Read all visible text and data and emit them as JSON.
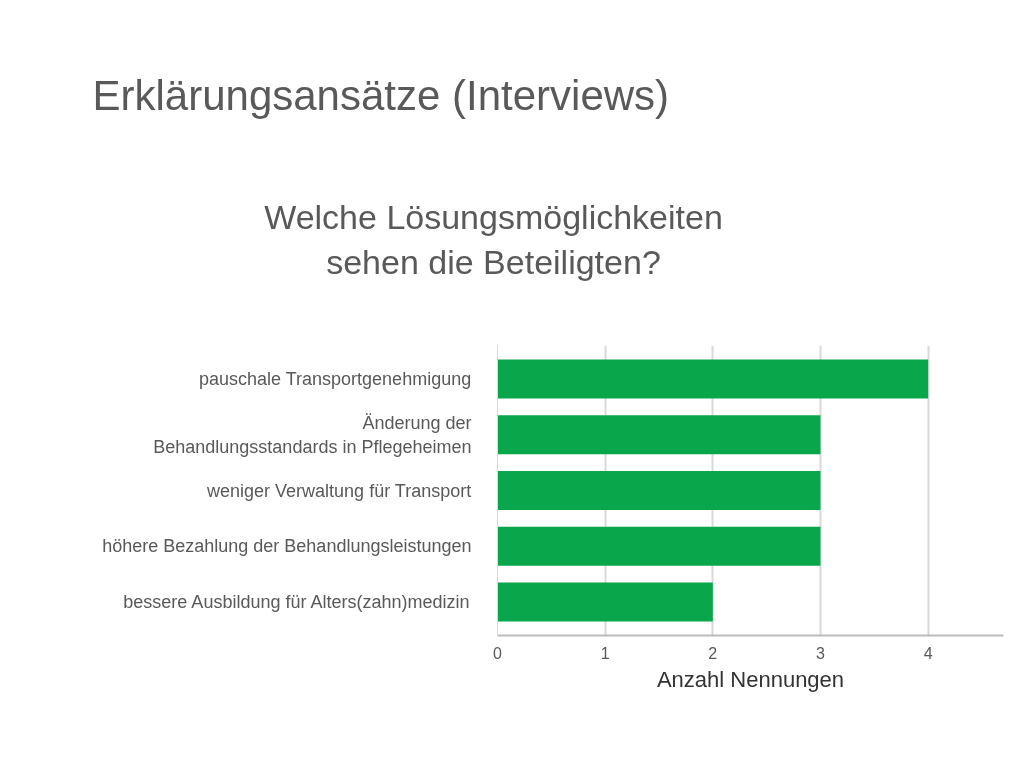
{
  "chart_data": {
    "type": "bar",
    "orientation": "horizontal",
    "title": "Erklärungsansätze (Interviews)",
    "subtitle": "Welche Lösungsmöglichkeiten\nsehen die Beteiligten?",
    "xlabel": "Anzahl Nennungen",
    "categories": [
      "pauschale Transportgenehmigung",
      "Änderung der\nBehandlungsstandards in Pflegeheimen",
      "weniger Verwaltung für Transport",
      "höhere Bezahlung der Behandlungsleistungen",
      "bessere Ausbildung für Alters(zahn)medizin"
    ],
    "values": [
      4,
      3,
      3,
      3,
      2
    ],
    "color": "#0aa64b",
    "xlim": [
      0,
      4.7
    ],
    "xticks": [
      0,
      1,
      2,
      3,
      4
    ],
    "grid": "x"
  }
}
